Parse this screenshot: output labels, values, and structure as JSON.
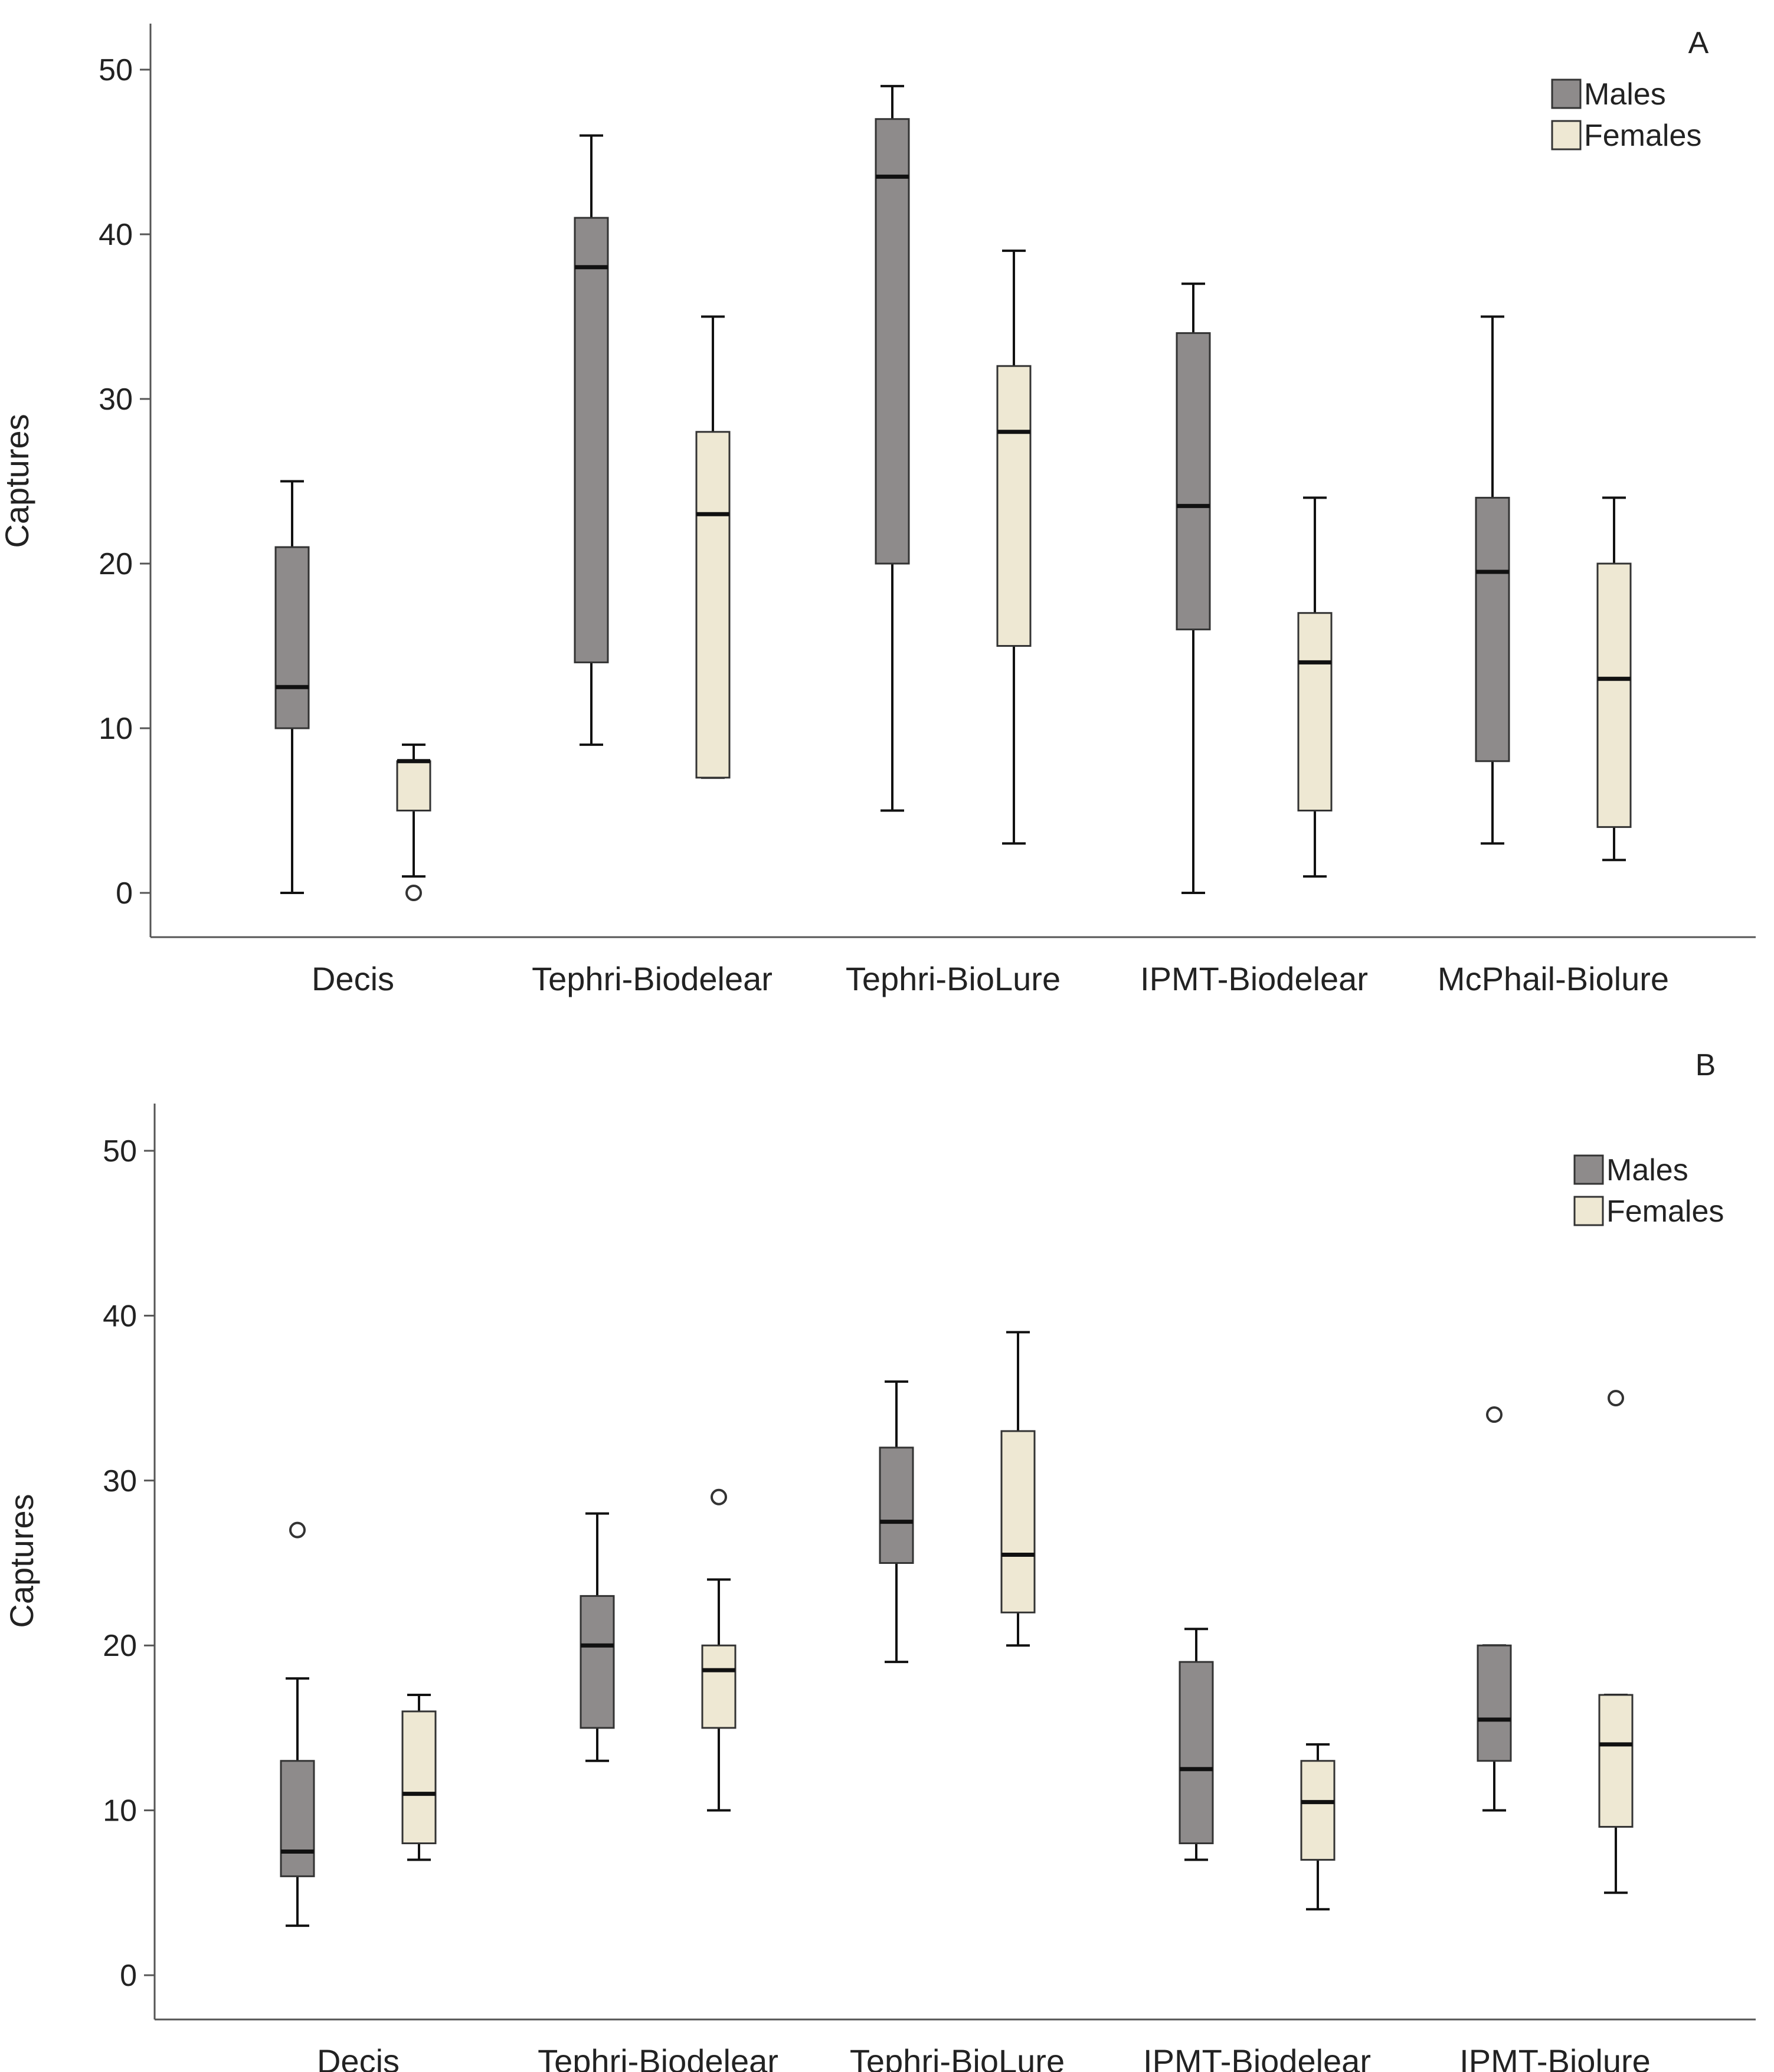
{
  "colors": {
    "males": "#8e8b8b",
    "females": "#eee8d3",
    "stroke": "#111111",
    "axis": "#555555"
  },
  "chart_data": [
    {
      "type": "boxplot",
      "panel_label": "A",
      "ylabel": "Captures",
      "xlabel": "",
      "ylim": [
        0,
        50
      ],
      "yticks": [
        0,
        10,
        20,
        30,
        40,
        50
      ],
      "legend_position": "top-right",
      "categories": [
        "Decis",
        "Tephri-Biodelear",
        "Tephri-BioLure",
        "IPMT-Biodelear",
        "McPhail-Biolure"
      ],
      "series": [
        {
          "name": "Males",
          "color_key": "males",
          "boxes": [
            {
              "min": 0,
              "q1": 10,
              "median": 12.5,
              "q3": 21,
              "max": 25,
              "outliers": []
            },
            {
              "min": 9,
              "q1": 14,
              "median": 38,
              "q3": 41,
              "max": 46,
              "outliers": []
            },
            {
              "min": 5,
              "q1": 20,
              "median": 43.5,
              "q3": 47,
              "max": 49,
              "outliers": []
            },
            {
              "min": 0,
              "q1": 16,
              "median": 23.5,
              "q3": 34,
              "max": 37,
              "outliers": []
            },
            {
              "min": 3,
              "q1": 8,
              "median": 19.5,
              "q3": 24,
              "max": 35,
              "outliers": []
            }
          ]
        },
        {
          "name": "Females",
          "color_key": "females",
          "boxes": [
            {
              "min": 1,
              "q1": 5,
              "median": 8,
              "q3": 8,
              "max": 9,
              "outliers": [
                0
              ]
            },
            {
              "min": 7,
              "q1": 7,
              "median": 23,
              "q3": 28,
              "max": 35,
              "outliers": []
            },
            {
              "min": 3,
              "q1": 15,
              "median": 28,
              "q3": 32,
              "max": 39,
              "outliers": []
            },
            {
              "min": 1,
              "q1": 5,
              "median": 14,
              "q3": 17,
              "max": 24,
              "outliers": []
            },
            {
              "min": 2,
              "q1": 4,
              "median": 13,
              "q3": 20,
              "max": 24,
              "outliers": []
            }
          ]
        }
      ]
    },
    {
      "type": "boxplot",
      "panel_label": "B",
      "ylabel": "Captures",
      "xlabel": "",
      "ylim": [
        0,
        50
      ],
      "yticks": [
        0,
        10,
        20,
        30,
        40,
        50
      ],
      "legend_position": "top-right",
      "categories": [
        "Decis",
        "Tephri-Biodelear",
        "Tephri-BioLure",
        "IPMT-Biodelear",
        "IPMT-Biolure"
      ],
      "series": [
        {
          "name": "Males",
          "color_key": "males",
          "boxes": [
            {
              "min": 3,
              "q1": 6,
              "median": 7.5,
              "q3": 13,
              "max": 18,
              "outliers": [
                27
              ]
            },
            {
              "min": 13,
              "q1": 15,
              "median": 20,
              "q3": 23,
              "max": 28,
              "outliers": []
            },
            {
              "min": 19,
              "q1": 25,
              "median": 27.5,
              "q3": 32,
              "max": 36,
              "outliers": []
            },
            {
              "min": 7,
              "q1": 8,
              "median": 12.5,
              "q3": 19,
              "max": 21,
              "outliers": []
            },
            {
              "min": 10,
              "q1": 13,
              "median": 15.5,
              "q3": 20,
              "max": 20,
              "outliers": [
                34
              ]
            }
          ]
        },
        {
          "name": "Females",
          "color_key": "females",
          "boxes": [
            {
              "min": 7,
              "q1": 8,
              "median": 11,
              "q3": 16,
              "max": 17,
              "outliers": []
            },
            {
              "min": 10,
              "q1": 15,
              "median": 18.5,
              "q3": 20,
              "max": 24,
              "outliers": [
                29
              ]
            },
            {
              "min": 20,
              "q1": 22,
              "median": 25.5,
              "q3": 33,
              "max": 39,
              "outliers": []
            },
            {
              "min": 4,
              "q1": 7,
              "median": 10.5,
              "q3": 13,
              "max": 14,
              "outliers": []
            },
            {
              "min": 5,
              "q1": 9,
              "median": 14,
              "q3": 17,
              "max": 17,
              "outliers": [
                35
              ]
            }
          ]
        }
      ]
    }
  ]
}
